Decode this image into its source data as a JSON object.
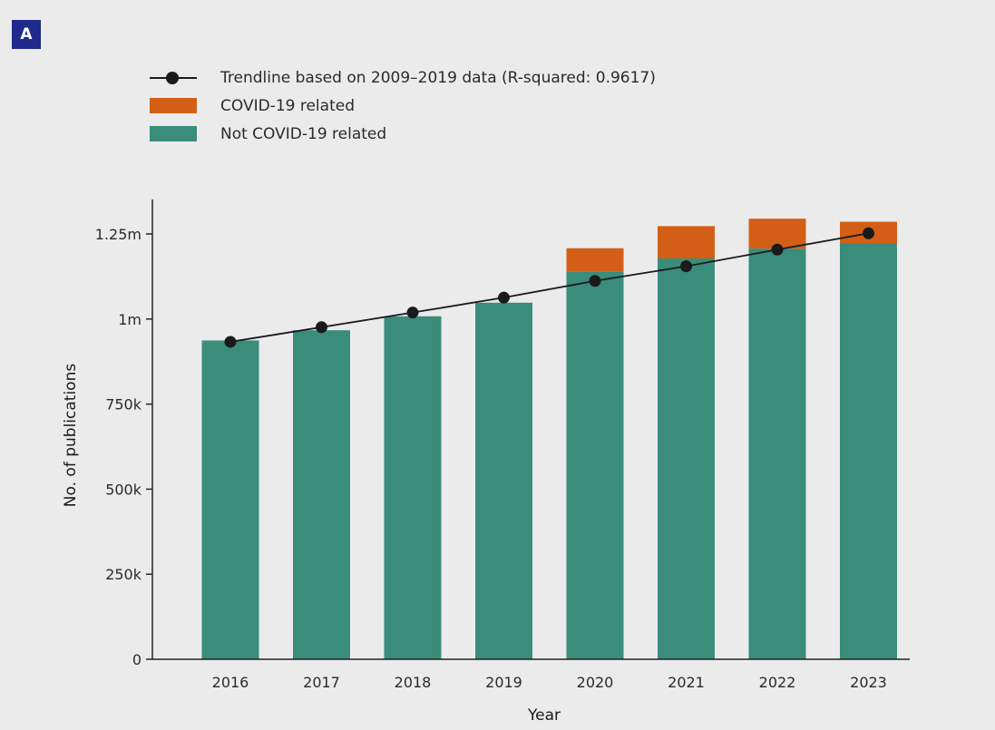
{
  "panel_label": "A",
  "colors": {
    "not_covid": "#3a8c7b",
    "covid": "#d35f16",
    "trend": "#1a1a1a",
    "badge": "#1f2a8c"
  },
  "legend": [
    {
      "label": "Trendline based on 2009–2019 data (R-squared: 0.9617)",
      "symbol": "line-marker"
    },
    {
      "label": "COVID-19 related",
      "symbol": "covid"
    },
    {
      "label": "Not COVID-19 related",
      "symbol": "not_covid"
    }
  ],
  "chart_data": {
    "type": "bar",
    "stacked": true,
    "xlabel": "Year",
    "ylabel": "No. of publications",
    "ylim": [
      0,
      1350000
    ],
    "yticks": [
      0,
      250000,
      500000,
      750000,
      1000000,
      1250000
    ],
    "ytick_labels": [
      "0",
      "250k",
      "500k",
      "750k",
      "1m",
      "1.25m"
    ],
    "categories": [
      "2016",
      "2017",
      "2018",
      "2019",
      "2020",
      "2021",
      "2022",
      "2023"
    ],
    "series": [
      {
        "name": "Not COVID-19 related",
        "values": [
          937000,
          967000,
          1008000,
          1048000,
          1140000,
          1178000,
          1207000,
          1222000
        ]
      },
      {
        "name": "COVID-19 related",
        "values": [
          0,
          0,
          0,
          0,
          68000,
          95000,
          88000,
          64000
        ]
      }
    ],
    "trendline": {
      "name": "Trendline based on 2009–2019 data (R-squared: 0.9617)",
      "values": [
        933000,
        976000,
        1019000,
        1063000,
        1112000,
        1155000,
        1204000,
        1252000
      ]
    }
  }
}
